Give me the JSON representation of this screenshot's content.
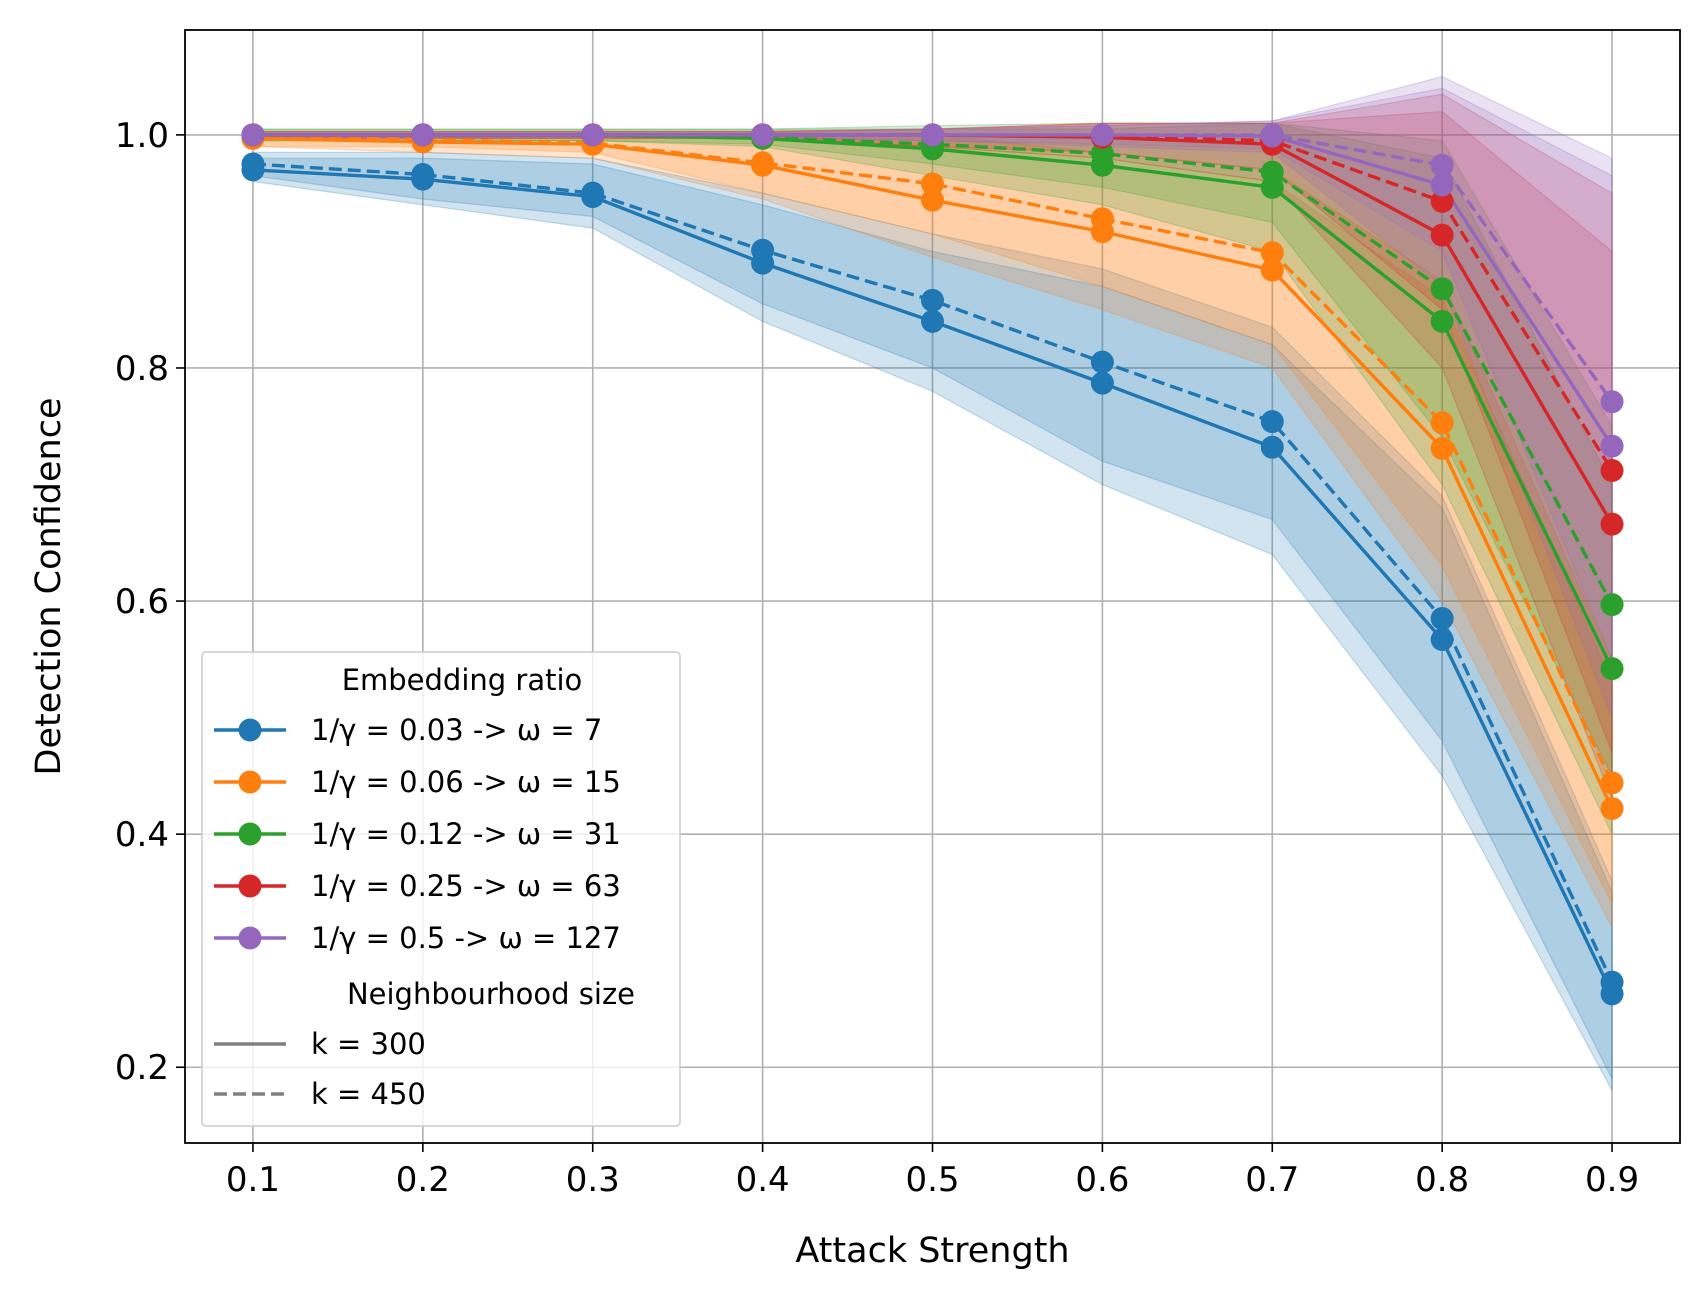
{
  "chart_data": {
    "type": "line",
    "title": "",
    "xlabel": "Attack Strength",
    "ylabel": "Detection Confidence",
    "x": [
      0.1,
      0.2,
      0.3,
      0.4,
      0.5,
      0.6,
      0.7,
      0.8,
      0.9
    ],
    "x_ticks": [
      "0.1",
      "0.2",
      "0.3",
      "0.4",
      "0.5",
      "0.6",
      "0.7",
      "0.8",
      "0.9"
    ],
    "y_ticks": [
      "0.2",
      "0.4",
      "0.6",
      "0.8",
      "1.0"
    ],
    "xlim": [
      0.06,
      0.94
    ],
    "ylim": [
      0.135,
      1.09
    ],
    "grid": true,
    "legend": {
      "placement": "lower-left",
      "title": "Embedding ratio",
      "style_title": "Neighbourhood size",
      "styles": [
        {
          "label": "k = 300",
          "dash": "solid"
        },
        {
          "label": "k = 450",
          "dash": "dashed"
        }
      ]
    },
    "series": [
      {
        "ratio": "1/γ = 0.03 -> ω = 7",
        "color": "#1f77b4",
        "k300": [
          0.97,
          0.962,
          0.947,
          0.89,
          0.84,
          0.787,
          0.732,
          0.567,
          0.263
        ],
        "k300_band": [
          [
            0.96,
            0.98
          ],
          [
            0.94,
            0.98
          ],
          [
            0.92,
            0.975
          ],
          [
            0.84,
            0.94
          ],
          [
            0.78,
            0.9
          ],
          [
            0.7,
            0.87
          ],
          [
            0.64,
            0.82
          ],
          [
            0.45,
            0.68
          ],
          [
            0.18,
            0.35
          ]
        ],
        "k450": [
          0.975,
          0.966,
          0.95,
          0.901,
          0.858,
          0.805,
          0.754,
          0.585,
          0.273
        ],
        "k450_band": [
          [
            0.965,
            0.985
          ],
          [
            0.945,
            0.985
          ],
          [
            0.93,
            0.98
          ],
          [
            0.855,
            0.95
          ],
          [
            0.8,
            0.915
          ],
          [
            0.72,
            0.885
          ],
          [
            0.67,
            0.835
          ],
          [
            0.48,
            0.69
          ],
          [
            0.19,
            0.36
          ]
        ]
      },
      {
        "ratio": "1/γ = 0.06 -> ω = 15",
        "color": "#ff7f0e",
        "k300": [
          0.997,
          0.994,
          0.992,
          0.974,
          0.944,
          0.917,
          0.884,
          0.731,
          0.422
        ],
        "k300_band": [
          [
            0.99,
            1.0
          ],
          [
            0.985,
            1.0
          ],
          [
            0.98,
            1.0
          ],
          [
            0.945,
            1.0
          ],
          [
            0.895,
            0.99
          ],
          [
            0.85,
            0.98
          ],
          [
            0.8,
            0.96
          ],
          [
            0.6,
            0.86
          ],
          [
            0.32,
            0.53
          ]
        ],
        "k450": [
          0.998,
          0.996,
          0.993,
          0.976,
          0.958,
          0.928,
          0.899,
          0.753,
          0.444
        ],
        "k450_band": [
          [
            0.99,
            1.0
          ],
          [
            0.99,
            1.0
          ],
          [
            0.985,
            1.0
          ],
          [
            0.95,
            1.0
          ],
          [
            0.915,
            1.0
          ],
          [
            0.87,
            0.985
          ],
          [
            0.82,
            0.97
          ],
          [
            0.63,
            0.875
          ],
          [
            0.34,
            0.55
          ]
        ]
      },
      {
        "ratio": "1/γ = 0.12 -> ω = 31",
        "color": "#2ca02c",
        "k300": [
          1.0,
          1.0,
          1.0,
          0.997,
          0.988,
          0.974,
          0.955,
          0.84,
          0.542
        ],
        "k300_band": [
          [
            0.995,
            1.005
          ],
          [
            0.995,
            1.005
          ],
          [
            0.995,
            1.005
          ],
          [
            0.99,
            1.005
          ],
          [
            0.965,
            1.005
          ],
          [
            0.94,
            1.005
          ],
          [
            0.9,
            1.01
          ],
          [
            0.7,
            0.98
          ],
          [
            0.4,
            0.7
          ]
        ],
        "k450": [
          1.0,
          1.0,
          1.0,
          0.998,
          0.992,
          0.984,
          0.968,
          0.868,
          0.597
        ],
        "k450_band": [
          [
            0.995,
            1.005
          ],
          [
            0.995,
            1.005
          ],
          [
            0.995,
            1.005
          ],
          [
            0.992,
            1.005
          ],
          [
            0.975,
            1.008
          ],
          [
            0.955,
            1.01
          ],
          [
            0.925,
            1.01
          ],
          [
            0.74,
            0.995
          ],
          [
            0.45,
            0.75
          ]
        ]
      },
      {
        "ratio": "1/γ = 0.25 -> ω = 63",
        "color": "#d62728",
        "k300": [
          1.0,
          1.0,
          1.0,
          1.0,
          1.0,
          0.998,
          0.992,
          0.914,
          0.666
        ],
        "k300_band": [
          [
            0.997,
            1.003
          ],
          [
            0.997,
            1.003
          ],
          [
            0.997,
            1.003
          ],
          [
            0.997,
            1.003
          ],
          [
            0.99,
            1.005
          ],
          [
            0.98,
            1.01
          ],
          [
            0.96,
            1.01
          ],
          [
            0.8,
            1.02
          ],
          [
            0.43,
            0.9
          ]
        ],
        "k450": [
          1.0,
          1.0,
          1.0,
          1.0,
          1.0,
          0.999,
          0.995,
          0.943,
          0.712
        ],
        "k450_band": [
          [
            0.997,
            1.003
          ],
          [
            0.997,
            1.003
          ],
          [
            0.997,
            1.003
          ],
          [
            0.997,
            1.003
          ],
          [
            0.99,
            1.005
          ],
          [
            0.985,
            1.01
          ],
          [
            0.97,
            1.01
          ],
          [
            0.85,
            1.035
          ],
          [
            0.47,
            0.95
          ]
        ]
      },
      {
        "ratio": "1/γ = 0.5 -> ω = 127",
        "color": "#9467bd",
        "k300": [
          1.0,
          1.0,
          1.0,
          1.0,
          1.0,
          1.0,
          0.999,
          0.957,
          0.733
        ],
        "k300_band": [
          [
            0.998,
            1.002
          ],
          [
            0.998,
            1.002
          ],
          [
            0.998,
            1.002
          ],
          [
            0.998,
            1.002
          ],
          [
            0.995,
            1.005
          ],
          [
            0.99,
            1.008
          ],
          [
            0.985,
            1.012
          ],
          [
            0.87,
            1.04
          ],
          [
            0.5,
            0.965
          ]
        ],
        "k450": [
          1.0,
          1.0,
          1.0,
          1.0,
          1.0,
          1.0,
          1.0,
          0.974,
          0.771
        ],
        "k450_band": [
          [
            0.998,
            1.002
          ],
          [
            0.998,
            1.002
          ],
          [
            0.998,
            1.002
          ],
          [
            0.998,
            1.002
          ],
          [
            0.995,
            1.005
          ],
          [
            0.992,
            1.008
          ],
          [
            0.988,
            1.012
          ],
          [
            0.9,
            1.05
          ],
          [
            0.55,
            0.98
          ]
        ]
      }
    ]
  }
}
